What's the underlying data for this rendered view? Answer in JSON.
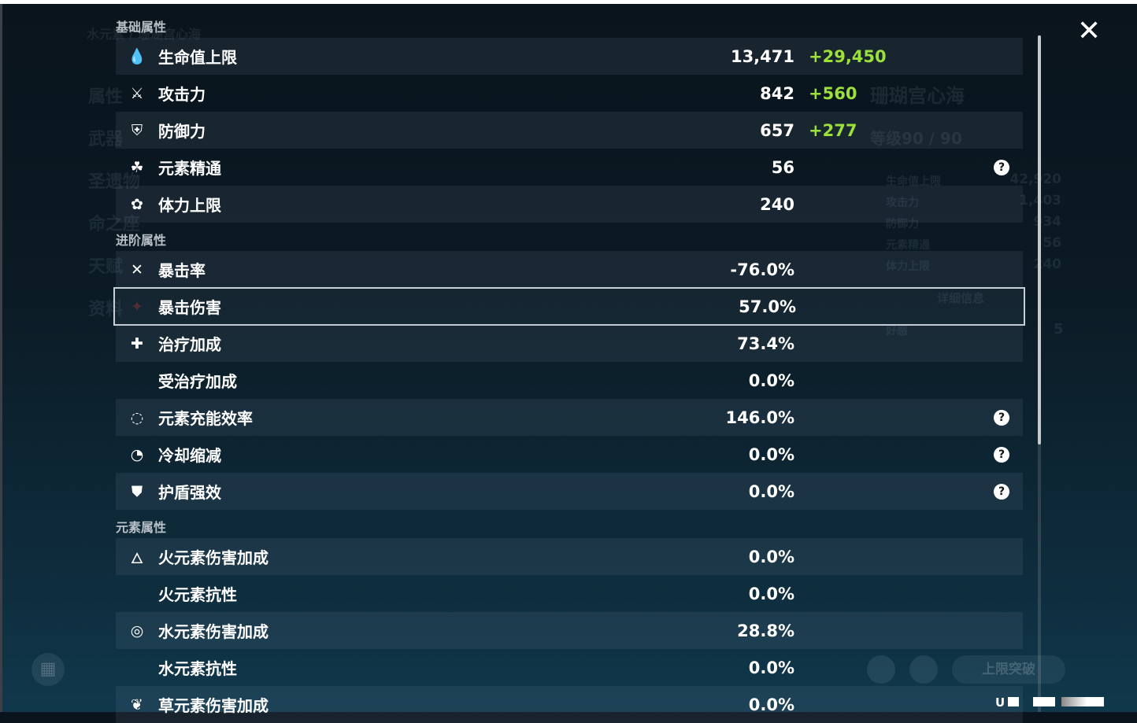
{
  "background": {
    "character_title": "水元素 / 珊瑚宫心海",
    "left_menu": [
      "属性",
      "武器",
      "圣遗物",
      "命之座",
      "天赋",
      "资料"
    ],
    "character_name": "珊瑚宫心海",
    "level": "等级90 / 90",
    "summary_stats": [
      {
        "label": "生命值上限",
        "value": "42,920"
      },
      {
        "label": "攻击力",
        "value": "1,403"
      },
      {
        "label": "防御力",
        "value": "934"
      },
      {
        "label": "元素精通",
        "value": "56"
      },
      {
        "label": "体力上限",
        "value": "240"
      }
    ],
    "details_button": "详细信息",
    "friendship_label": "好感",
    "friendship_value": "5",
    "ascend_button": "上限突破"
  },
  "uid_prefix": "U",
  "sections": [
    {
      "title": "基础属性",
      "rows": [
        {
          "icon": "hp-drop-icon",
          "glyph": "💧",
          "label": "生命值上限",
          "value": "13,471",
          "bonus": "+29,450"
        },
        {
          "icon": "sword-icon",
          "glyph": "⚔",
          "label": "攻击力",
          "value": "842",
          "bonus": "+560"
        },
        {
          "icon": "shield-icon",
          "glyph": "⛨",
          "label": "防御力",
          "value": "657",
          "bonus": "+277"
        },
        {
          "icon": "elemental-mastery-icon",
          "glyph": "☘",
          "label": "元素精通",
          "value": "56",
          "help": true
        },
        {
          "icon": "stamina-icon",
          "glyph": "✿",
          "label": "体力上限",
          "value": "240"
        }
      ]
    },
    {
      "title": "进阶属性",
      "rows": [
        {
          "icon": "crit-rate-icon",
          "glyph": "✕",
          "label": "暴击率",
          "value": "-76.0%"
        },
        {
          "icon": "crit-dmg-icon",
          "glyph": "",
          "label": "暴击伤害",
          "value": "57.0%",
          "selected": true
        },
        {
          "icon": "healing-bonus-icon",
          "glyph": "✚",
          "label": "治疗加成",
          "value": "73.4%"
        },
        {
          "icon": "",
          "glyph": "",
          "label": "受治疗加成",
          "value": "0.0%"
        },
        {
          "icon": "energy-recharge-icon",
          "glyph": "◌",
          "label": "元素充能效率",
          "value": "146.0%",
          "help": true
        },
        {
          "icon": "cooldown-icon",
          "glyph": "◔",
          "label": "冷却缩减",
          "value": "0.0%",
          "help": true
        },
        {
          "icon": "shield-strength-icon",
          "glyph": "⛊",
          "label": "护盾强效",
          "value": "0.0%",
          "help": true
        }
      ]
    },
    {
      "title": "元素属性",
      "rows": [
        {
          "icon": "pyro-icon",
          "glyph": "🜂",
          "label": "火元素伤害加成",
          "value": "0.0%"
        },
        {
          "icon": "",
          "glyph": "",
          "label": "火元素抗性",
          "value": "0.0%"
        },
        {
          "icon": "hydro-icon",
          "glyph": "◎",
          "label": "水元素伤害加成",
          "value": "28.8%"
        },
        {
          "icon": "",
          "glyph": "",
          "label": "水元素抗性",
          "value": "0.0%"
        },
        {
          "icon": "dendro-icon",
          "glyph": "❦",
          "label": "草元素伤害加成",
          "value": "0.0%"
        }
      ]
    }
  ],
  "colors": {
    "bonus": "#9be13a",
    "highlight_border": "#c8cfd6"
  }
}
